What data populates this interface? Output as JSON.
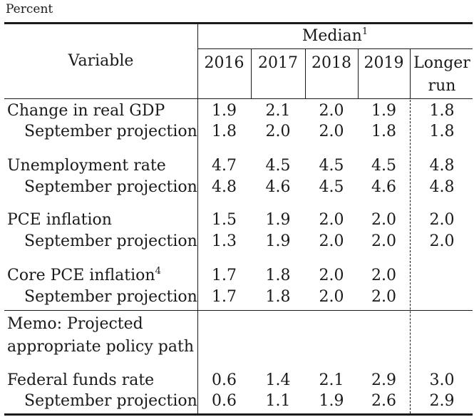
{
  "unit_label": "Percent",
  "header": {
    "variable": "Variable",
    "median": "Median",
    "median_note": "1",
    "years": [
      "2016",
      "2017",
      "2018",
      "2019"
    ],
    "longer_run_1": "Longer",
    "longer_run_2": "run"
  },
  "rows": [
    {
      "label": "Change in real GDP",
      "values": [
        "1.9",
        "2.1",
        "2.0",
        "1.9",
        "1.8"
      ]
    },
    {
      "label": "September projection",
      "values": [
        "1.8",
        "2.0",
        "2.0",
        "1.8",
        "1.8"
      ]
    },
    {
      "label": "Unemployment rate",
      "values": [
        "4.7",
        "4.5",
        "4.5",
        "4.5",
        "4.8"
      ]
    },
    {
      "label": "September projection",
      "values": [
        "4.8",
        "4.6",
        "4.5",
        "4.6",
        "4.8"
      ]
    },
    {
      "label": "PCE inflation",
      "values": [
        "1.5",
        "1.9",
        "2.0",
        "2.0",
        "2.0"
      ]
    },
    {
      "label": "September projection",
      "values": [
        "1.3",
        "1.9",
        "2.0",
        "2.0",
        "2.0"
      ]
    },
    {
      "label": "Core PCE inflation",
      "note": "4",
      "values": [
        "1.7",
        "1.8",
        "2.0",
        "2.0",
        ""
      ]
    },
    {
      "label": "September projection",
      "values": [
        "1.7",
        "1.8",
        "2.0",
        "2.0",
        ""
      ]
    },
    {
      "label": "Federal funds rate",
      "values": [
        "0.6",
        "1.4",
        "2.1",
        "2.9",
        "3.0"
      ]
    },
    {
      "label": "September projection",
      "values": [
        "0.6",
        "1.1",
        "1.9",
        "2.6",
        "2.9"
      ]
    }
  ],
  "memo": {
    "line1": "Memo: Projected",
    "line2": "appropriate policy path"
  }
}
